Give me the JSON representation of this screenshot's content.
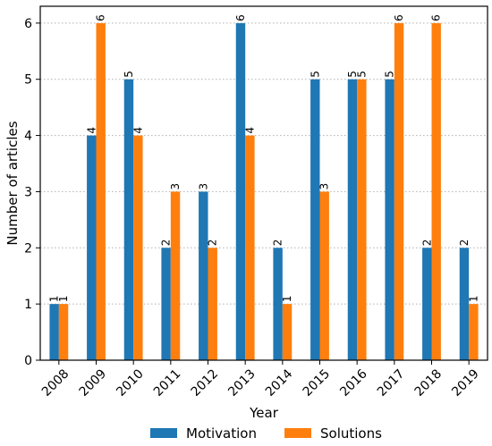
{
  "chart_data": {
    "type": "bar",
    "categories": [
      "2008",
      "2009",
      "2010",
      "2011",
      "2012",
      "2013",
      "2014",
      "2015",
      "2016",
      "2017",
      "2018",
      "2019"
    ],
    "series": [
      {
        "name": "Motivation",
        "color": "#1f77b4",
        "values": [
          1,
          4,
          5,
          2,
          3,
          6,
          2,
          5,
          5,
          5,
          2,
          2
        ]
      },
      {
        "name": "Solutions",
        "color": "#ff7f0e",
        "values": [
          1,
          6,
          4,
          3,
          2,
          4,
          1,
          3,
          5,
          6,
          6,
          1
        ]
      }
    ],
    "xlabel": "Year",
    "ylabel": "Number of articles",
    "ylim": [
      0,
      6.3
    ],
    "yticks": [
      0,
      1,
      2,
      3,
      4,
      5,
      6
    ],
    "grid": "horizontal dotted",
    "legend": "bottom-center"
  }
}
